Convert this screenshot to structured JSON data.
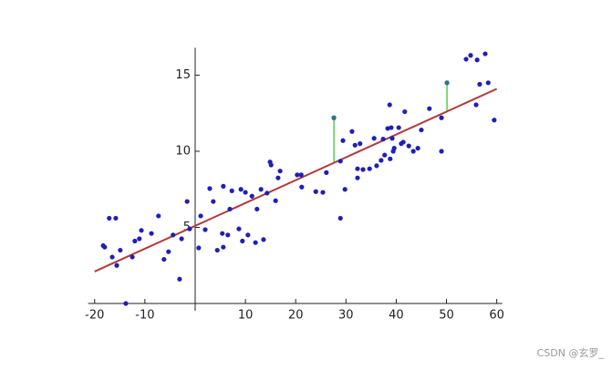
{
  "chart_data": {
    "type": "scatter",
    "x": [
      -18.3,
      -18.0,
      -17.1,
      -15.8,
      -16.5,
      -15.6,
      -14.9,
      -13.8,
      -12.5,
      -12.0,
      -11.1,
      -10.7,
      -8.7,
      -7.3,
      -6.2,
      -5.3,
      -4.4,
      -3.1,
      -2.7,
      -1.6,
      -1.1,
      0.7,
      1.1,
      2.0,
      2.9,
      3.6,
      4.4,
      5.4,
      5.6,
      5.6,
      6.5,
      6.9,
      7.3,
      8.7,
      9.1,
      9.4,
      10.0,
      10.5,
      11.3,
      12.0,
      12.3,
      13.1,
      13.6,
      14.3,
      14.9,
      15.1,
      16.0,
      16.5,
      16.9,
      20.3,
      21.1,
      21.2,
      24.0,
      25.4,
      26.1,
      27.6,
      28.9,
      28.9,
      29.4,
      29.8,
      31.2,
      31.8,
      32.3,
      32.3,
      32.8,
      33.4,
      34.7,
      35.6,
      36.1,
      37.0,
      37.4,
      37.7,
      38.3,
      38.7,
      38.8,
      39.0,
      39.2,
      39.4,
      39.6,
      40.5,
      41.0,
      41.4,
      41.7,
      42.5,
      43.4,
      44.3,
      45.0,
      46.6,
      49.0,
      49.0,
      50.1,
      53.9,
      54.8,
      55.9,
      56.1,
      56.6,
      57.7,
      58.3,
      59.5
    ],
    "values": [
      3.8,
      3.7,
      5.6,
      5.6,
      3.05,
      2.5,
      3.5,
      0,
      3.05,
      4.1,
      4.25,
      4.8,
      4.6,
      5.75,
      2.9,
      3.4,
      4.5,
      1.6,
      4.25,
      6.7,
      4.9,
      3.65,
      5.75,
      4.85,
      7.55,
      6.7,
      3.5,
      4.6,
      3.7,
      7.7,
      4.5,
      6.2,
      7.4,
      4.9,
      7.5,
      4.1,
      7.3,
      4.5,
      7.05,
      4.0,
      6.2,
      7.5,
      4.2,
      7.25,
      9.3,
      9.1,
      6.75,
      8.25,
      8.7,
      8.45,
      8.45,
      7.65,
      7.35,
      7.3,
      8.6,
      12.2,
      9.35,
      5.6,
      10.7,
      7.5,
      11.3,
      10.4,
      8.85,
      8.25,
      10.5,
      8.8,
      8.85,
      10.85,
      9.05,
      9.4,
      10.8,
      9.75,
      11.5,
      13.05,
      9.5,
      11.55,
      10.85,
      10.0,
      10.2,
      11.55,
      10.5,
      10.6,
      12.6,
      10.35,
      10.0,
      10.2,
      11.4,
      12.8,
      10.0,
      12.2,
      14.5,
      16.05,
      16.3,
      13.05,
      16.0,
      14.4,
      16.4,
      14.5,
      12.05
    ],
    "color": "#1f1fb8",
    "fit_line": {
      "x": [
        -20,
        60
      ],
      "values": [
        2.1,
        14.1
      ],
      "color": "#b33a3a"
    },
    "residuals": {
      "x": [
        27.6,
        50.1
      ],
      "values": [
        12.2,
        14.5
      ],
      "fit_values": [
        9.3,
        12.6
      ],
      "color": "#33cc33"
    },
    "xlim": [
      -21.3,
      61.1
    ],
    "ylim": [
      0,
      16.8
    ],
    "xticks": [
      -20,
      -10,
      10,
      20,
      30,
      40,
      50,
      60
    ],
    "yticks": [
      5,
      10,
      15
    ]
  },
  "watermark": "CSDN @玄罗_"
}
